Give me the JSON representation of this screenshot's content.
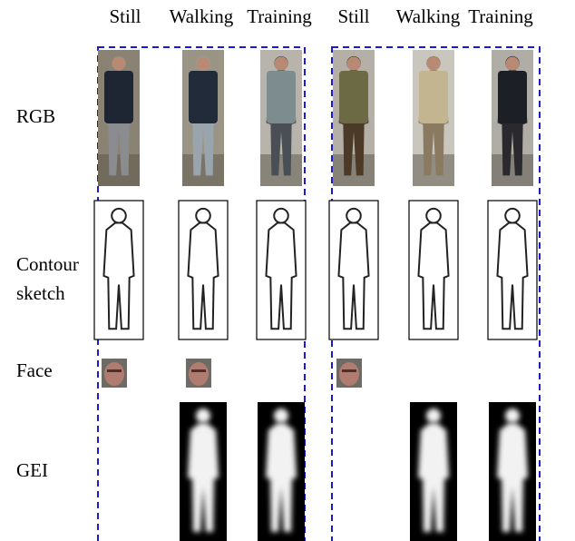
{
  "columns": [
    [
      "Still",
      "Walking",
      "Training"
    ],
    [
      "Still",
      "Walking",
      "Training"
    ]
  ],
  "rows": [
    [
      "RGB"
    ],
    [
      "Contour",
      "sketch"
    ],
    [
      "Face"
    ],
    [
      "GEI"
    ]
  ]
}
